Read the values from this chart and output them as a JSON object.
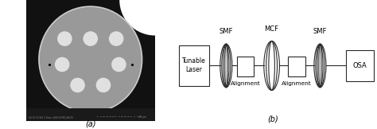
{
  "fig_width": 4.74,
  "fig_height": 1.62,
  "dpi": 100,
  "bg_color": "#ffffff",
  "panel_a_label": "(a)",
  "panel_b_label": "(b)",
  "line_color": "#2a2a2a",
  "label_smf1": "SMF",
  "label_mcf": "MCF",
  "label_smf2": "SMF",
  "label_laser": "Tunable\nLaser",
  "label_osa": "OSA",
  "label_align1": "Alignment",
  "label_align2": "Alignment",
  "sem_bg": "#111111",
  "sem_fiber_color": "#999999",
  "sem_core_color": "#e0e0e0",
  "sem_outer_edge": "#cccccc"
}
